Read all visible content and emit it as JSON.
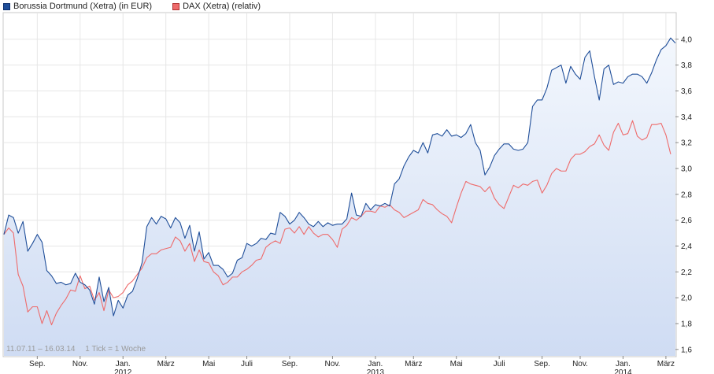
{
  "legend": {
    "items": [
      {
        "label": "Borussia Dortmund (Xetra) (in EUR)",
        "color": "#1f4e99",
        "border": "#0d2f6e"
      },
      {
        "label": "DAX (Xetra) (relativ)",
        "color": "#ee6b6b",
        "border": "#b03030"
      }
    ]
  },
  "info": {
    "range": "11.07.11 – 16.03.14",
    "tick": "1 Tick = 1 Woche"
  },
  "chart_data": {
    "type": "line",
    "ylim": [
      1.55,
      4.2
    ],
    "grid": true,
    "legend_position": "top-left",
    "y_ticks": [
      "1,6",
      "1,8",
      "2,0",
      "2,2",
      "2,4",
      "2,6",
      "2,8",
      "3,0",
      "3,2",
      "3,4",
      "3,6",
      "3,8",
      "4,0"
    ],
    "x_ticks": [
      {
        "label": "Sep.",
        "week": 7
      },
      {
        "label": "Nov.",
        "week": 16
      },
      {
        "label": "Jan.",
        "label2": "2012",
        "week": 25
      },
      {
        "label": "März",
        "week": 34
      },
      {
        "label": "Mai",
        "week": 43
      },
      {
        "label": "Juli",
        "week": 51
      },
      {
        "label": "Sep.",
        "week": 60
      },
      {
        "label": "Nov.",
        "week": 69
      },
      {
        "label": "Jan.",
        "label2": "2013",
        "week": 78
      },
      {
        "label": "März",
        "week": 86
      },
      {
        "label": "Mai",
        "week": 95
      },
      {
        "label": "Juli",
        "week": 104
      },
      {
        "label": "Sep.",
        "week": 113
      },
      {
        "label": "Nov.",
        "week": 121
      },
      {
        "label": "Jan.",
        "label2": "2014",
        "week": 130
      },
      {
        "label": "März",
        "week": 139
      }
    ],
    "series": [
      {
        "name": "Borussia Dortmund (Xetra) (in EUR)",
        "color": "#1f4e99",
        "values": [
          2.49,
          2.64,
          2.62,
          2.5,
          2.59,
          2.36,
          2.42,
          2.49,
          2.43,
          2.21,
          2.17,
          2.11,
          2.12,
          2.1,
          2.11,
          2.19,
          2.12,
          2.1,
          2.06,
          1.95,
          2.16,
          1.97,
          2.08,
          1.86,
          1.98,
          1.92,
          2.02,
          2.05,
          2.15,
          2.27,
          2.55,
          2.62,
          2.57,
          2.63,
          2.61,
          2.54,
          2.62,
          2.58,
          2.46,
          2.56,
          2.36,
          2.51,
          2.3,
          2.35,
          2.25,
          2.25,
          2.22,
          2.16,
          2.19,
          2.29,
          2.31,
          2.42,
          2.4,
          2.42,
          2.46,
          2.45,
          2.5,
          2.49,
          2.66,
          2.63,
          2.57,
          2.6,
          2.66,
          2.62,
          2.57,
          2.55,
          2.59,
          2.55,
          2.58,
          2.56,
          2.57,
          2.57,
          2.61,
          2.81,
          2.64,
          2.63,
          2.73,
          2.68,
          2.72,
          2.71,
          2.73,
          2.71,
          2.88,
          2.92,
          3.02,
          3.09,
          3.14,
          3.12,
          3.2,
          3.12,
          3.26,
          3.27,
          3.25,
          3.3,
          3.25,
          3.26,
          3.24,
          3.27,
          3.34,
          3.2,
          3.14,
          2.95,
          3.01,
          3.1,
          3.15,
          3.19,
          3.19,
          3.15,
          3.14,
          3.15,
          3.2,
          3.48,
          3.53,
          3.53,
          3.62,
          3.76,
          3.78,
          3.8,
          3.66,
          3.79,
          3.73,
          3.69,
          3.86,
          3.91,
          3.71,
          3.53,
          3.77,
          3.8,
          3.65,
          3.67,
          3.66,
          3.71,
          3.73,
          3.73,
          3.71,
          3.66,
          3.74,
          3.84,
          3.92,
          3.95,
          4.01,
          3.97
        ]
      },
      {
        "name": "DAX (Xetra) (relativ)",
        "color": "#ee6b6b",
        "values": [
          2.49,
          2.54,
          2.5,
          2.18,
          2.09,
          1.89,
          1.93,
          1.93,
          1.8,
          1.9,
          1.79,
          1.88,
          1.94,
          1.99,
          2.06,
          2.05,
          2.17,
          2.07,
          2.09,
          1.98,
          2.04,
          1.9,
          2.06,
          2.0,
          2.01,
          2.04,
          2.1,
          2.13,
          2.18,
          2.23,
          2.31,
          2.34,
          2.34,
          2.37,
          2.38,
          2.39,
          2.47,
          2.44,
          2.36,
          2.42,
          2.28,
          2.37,
          2.28,
          2.27,
          2.2,
          2.17,
          2.1,
          2.12,
          2.16,
          2.16,
          2.2,
          2.22,
          2.25,
          2.29,
          2.3,
          2.39,
          2.42,
          2.44,
          2.42,
          2.53,
          2.54,
          2.5,
          2.55,
          2.49,
          2.55,
          2.5,
          2.47,
          2.49,
          2.49,
          2.45,
          2.39,
          2.53,
          2.56,
          2.62,
          2.6,
          2.63,
          2.67,
          2.67,
          2.66,
          2.71,
          2.7,
          2.72,
          2.68,
          2.66,
          2.62,
          2.64,
          2.66,
          2.68,
          2.76,
          2.73,
          2.72,
          2.68,
          2.65,
          2.63,
          2.58,
          2.7,
          2.81,
          2.9,
          2.88,
          2.87,
          2.86,
          2.82,
          2.86,
          2.77,
          2.72,
          2.69,
          2.78,
          2.87,
          2.85,
          2.88,
          2.87,
          2.9,
          2.91,
          2.81,
          2.87,
          2.96,
          3.0,
          2.98,
          2.98,
          3.07,
          3.11,
          3.11,
          3.13,
          3.17,
          3.19,
          3.26,
          3.18,
          3.14,
          3.28,
          3.35,
          3.26,
          3.27,
          3.37,
          3.25,
          3.22,
          3.24,
          3.34,
          3.34,
          3.35,
          3.26,
          3.11
        ]
      }
    ]
  }
}
